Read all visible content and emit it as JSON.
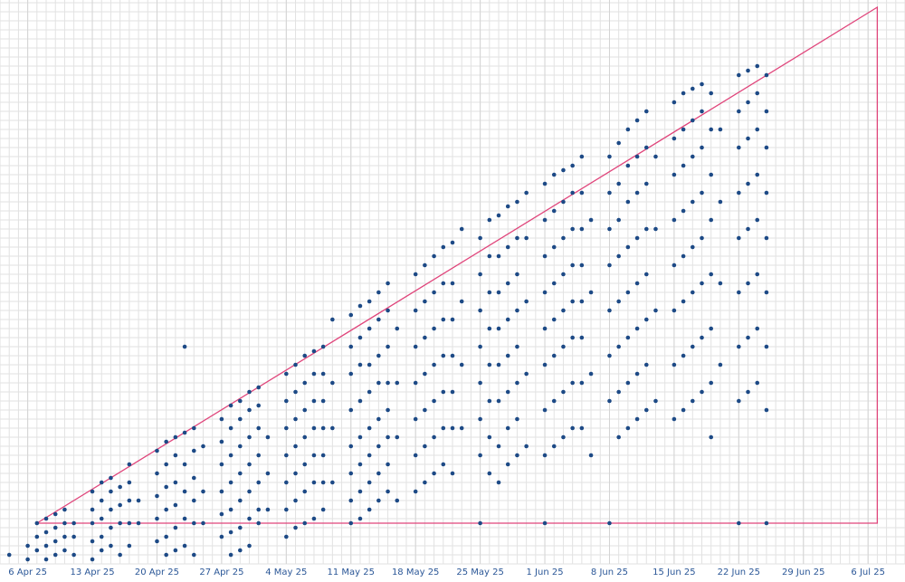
{
  "chart_data": {
    "type": "scatter",
    "color": "#1d4a86",
    "grid": true,
    "xlim": [
      "2025-04-03",
      "2025-07-10"
    ],
    "ylim": [
      0,
      62.3
    ],
    "xticks": [
      {
        "value": "2025-04-06",
        "label": "6 Apr 25"
      },
      {
        "value": "2025-04-13",
        "label": "13 Apr 25"
      },
      {
        "value": "2025-04-20",
        "label": "20 Apr 25"
      },
      {
        "value": "2025-04-27",
        "label": "27 Apr 25"
      },
      {
        "value": "2025-05-04",
        "label": "4 May 25"
      },
      {
        "value": "2025-05-11",
        "label": "11 May 25"
      },
      {
        "value": "2025-05-18",
        "label": "18 May 25"
      },
      {
        "value": "2025-05-25",
        "label": "25 May 25"
      },
      {
        "value": "2025-06-01",
        "label": "1 Jun 25"
      },
      {
        "value": "2025-06-08",
        "label": "8 Jun 25"
      },
      {
        "value": "2025-06-15",
        "label": "15 Jun 25"
      },
      {
        "value": "2025-06-22",
        "label": "22 Jun 25"
      },
      {
        "value": "2025-06-29",
        "label": "29 Jun 25"
      },
      {
        "value": "2025-07-06",
        "label": "6 Jul 25"
      }
    ],
    "triangle": {
      "x": [
        "2025-04-07",
        "2025-07-07",
        "2025-07-07"
      ],
      "values": [
        4.5,
        61.5,
        4.5
      ],
      "color": "#e0457b"
    },
    "x": [
      "2025-04-04",
      "2025-04-06",
      "2025-04-06",
      "2025-04-07",
      "2025-04-07",
      "2025-04-07",
      "2025-04-08",
      "2025-04-08",
      "2025-04-08",
      "2025-04-08",
      "2025-04-09",
      "2025-04-09",
      "2025-04-09",
      "2025-04-09",
      "2025-04-10",
      "2025-04-10",
      "2025-04-10",
      "2025-04-10",
      "2025-04-11",
      "2025-04-11",
      "2025-04-11",
      "2025-04-13",
      "2025-04-13",
      "2025-04-13",
      "2025-04-13",
      "2025-04-13",
      "2025-04-14",
      "2025-04-14",
      "2025-04-14",
      "2025-04-14",
      "2025-04-14",
      "2025-04-15",
      "2025-04-15",
      "2025-04-15",
      "2025-04-15",
      "2025-04-15",
      "2025-04-16",
      "2025-04-16",
      "2025-04-16",
      "2025-04-16",
      "2025-04-17",
      "2025-04-17",
      "2025-04-17",
      "2025-04-17",
      "2025-04-17",
      "2025-04-18",
      "2025-04-18",
      "2025-04-20",
      "2025-04-20",
      "2025-04-20",
      "2025-04-20",
      "2025-04-20",
      "2025-04-21",
      "2025-04-21",
      "2025-04-21",
      "2025-04-21",
      "2025-04-21",
      "2025-04-21",
      "2025-04-22",
      "2025-04-22",
      "2025-04-22",
      "2025-04-22",
      "2025-04-22",
      "2025-04-22",
      "2025-04-23",
      "2025-04-23",
      "2025-04-23",
      "2025-04-23",
      "2025-04-23",
      "2025-04-23",
      "2025-04-24",
      "2025-04-24",
      "2025-04-24",
      "2025-04-24",
      "2025-04-24",
      "2025-04-24",
      "2025-04-25",
      "2025-04-25",
      "2025-04-25",
      "2025-04-27",
      "2025-04-27",
      "2025-04-27",
      "2025-04-27",
      "2025-04-27",
      "2025-04-27",
      "2025-04-28",
      "2025-04-28",
      "2025-04-28",
      "2025-04-28",
      "2025-04-28",
      "2025-04-28",
      "2025-04-28",
      "2025-04-29",
      "2025-04-29",
      "2025-04-29",
      "2025-04-29",
      "2025-04-29",
      "2025-04-29",
      "2025-04-29",
      "2025-04-30",
      "2025-04-30",
      "2025-04-30",
      "2025-04-30",
      "2025-04-30",
      "2025-04-30",
      "2025-04-30",
      "2025-05-01",
      "2025-05-01",
      "2025-05-01",
      "2025-05-01",
      "2025-05-01",
      "2025-05-01",
      "2025-05-01",
      "2025-05-02",
      "2025-05-02",
      "2025-05-02",
      "2025-05-04",
      "2025-05-04",
      "2025-05-04",
      "2025-05-04",
      "2025-05-04",
      "2025-05-04",
      "2025-05-04",
      "2025-05-05",
      "2025-05-05",
      "2025-05-05",
      "2025-05-05",
      "2025-05-05",
      "2025-05-05",
      "2025-05-05",
      "2025-05-06",
      "2025-05-06",
      "2025-05-06",
      "2025-05-06",
      "2025-05-06",
      "2025-05-06",
      "2025-05-06",
      "2025-05-07",
      "2025-05-07",
      "2025-05-07",
      "2025-05-07",
      "2025-05-07",
      "2025-05-07",
      "2025-05-07",
      "2025-05-08",
      "2025-05-08",
      "2025-05-08",
      "2025-05-08",
      "2025-05-08",
      "2025-05-08",
      "2025-05-08",
      "2025-05-09",
      "2025-05-09",
      "2025-05-09",
      "2025-05-09",
      "2025-05-11",
      "2025-05-11",
      "2025-05-11",
      "2025-05-11",
      "2025-05-11",
      "2025-05-11",
      "2025-05-11",
      "2025-05-11",
      "2025-05-12",
      "2025-05-12",
      "2025-05-12",
      "2025-05-12",
      "2025-05-12",
      "2025-05-12",
      "2025-05-12",
      "2025-05-12",
      "2025-05-13",
      "2025-05-13",
      "2025-05-13",
      "2025-05-13",
      "2025-05-13",
      "2025-05-13",
      "2025-05-13",
      "2025-05-13",
      "2025-05-14",
      "2025-05-14",
      "2025-05-14",
      "2025-05-14",
      "2025-05-14",
      "2025-05-14",
      "2025-05-14",
      "2025-05-14",
      "2025-05-15",
      "2025-05-15",
      "2025-05-15",
      "2025-05-15",
      "2025-05-15",
      "2025-05-15",
      "2025-05-15",
      "2025-05-15",
      "2025-05-16",
      "2025-05-16",
      "2025-05-16",
      "2025-05-16",
      "2025-05-18",
      "2025-05-18",
      "2025-05-18",
      "2025-05-18",
      "2025-05-18",
      "2025-05-18",
      "2025-05-18",
      "2025-05-19",
      "2025-05-19",
      "2025-05-19",
      "2025-05-19",
      "2025-05-19",
      "2025-05-19",
      "2025-05-19",
      "2025-05-20",
      "2025-05-20",
      "2025-05-20",
      "2025-05-20",
      "2025-05-20",
      "2025-05-20",
      "2025-05-20",
      "2025-05-21",
      "2025-05-21",
      "2025-05-21",
      "2025-05-21",
      "2025-05-21",
      "2025-05-21",
      "2025-05-21",
      "2025-05-22",
      "2025-05-22",
      "2025-05-22",
      "2025-05-22",
      "2025-05-22",
      "2025-05-22",
      "2025-05-22",
      "2025-05-23",
      "2025-05-23",
      "2025-05-23",
      "2025-05-23",
      "2025-05-25",
      "2025-05-25",
      "2025-05-25",
      "2025-05-25",
      "2025-05-25",
      "2025-05-25",
      "2025-05-25",
      "2025-05-25",
      "2025-05-26",
      "2025-05-26",
      "2025-05-26",
      "2025-05-26",
      "2025-05-26",
      "2025-05-26",
      "2025-05-26",
      "2025-05-26",
      "2025-05-27",
      "2025-05-27",
      "2025-05-27",
      "2025-05-27",
      "2025-05-27",
      "2025-05-27",
      "2025-05-27",
      "2025-05-27",
      "2025-05-28",
      "2025-05-28",
      "2025-05-28",
      "2025-05-28",
      "2025-05-28",
      "2025-05-28",
      "2025-05-28",
      "2025-05-28",
      "2025-05-29",
      "2025-05-29",
      "2025-05-29",
      "2025-05-29",
      "2025-05-29",
      "2025-05-29",
      "2025-05-29",
      "2025-05-29",
      "2025-05-30",
      "2025-05-30",
      "2025-05-30",
      "2025-05-30",
      "2025-05-30",
      "2025-06-01",
      "2025-06-01",
      "2025-06-01",
      "2025-06-01",
      "2025-06-01",
      "2025-06-01",
      "2025-06-01",
      "2025-06-01",
      "2025-06-01",
      "2025-06-02",
      "2025-06-02",
      "2025-06-02",
      "2025-06-02",
      "2025-06-02",
      "2025-06-02",
      "2025-06-02",
      "2025-06-02",
      "2025-06-03",
      "2025-06-03",
      "2025-06-03",
      "2025-06-03",
      "2025-06-03",
      "2025-06-03",
      "2025-06-03",
      "2025-06-03",
      "2025-06-04",
      "2025-06-04",
      "2025-06-04",
      "2025-06-04",
      "2025-06-04",
      "2025-06-04",
      "2025-06-04",
      "2025-06-04",
      "2025-06-05",
      "2025-06-05",
      "2025-06-05",
      "2025-06-05",
      "2025-06-05",
      "2025-06-05",
      "2025-06-05",
      "2025-06-05",
      "2025-06-06",
      "2025-06-06",
      "2025-06-06",
      "2025-06-06",
      "2025-06-08",
      "2025-06-08",
      "2025-06-08",
      "2025-06-08",
      "2025-06-08",
      "2025-06-08",
      "2025-06-08",
      "2025-06-08",
      "2025-06-09",
      "2025-06-09",
      "2025-06-09",
      "2025-06-09",
      "2025-06-09",
      "2025-06-09",
      "2025-06-09",
      "2025-06-09",
      "2025-06-10",
      "2025-06-10",
      "2025-06-10",
      "2025-06-10",
      "2025-06-10",
      "2025-06-10",
      "2025-06-10",
      "2025-06-10",
      "2025-06-11",
      "2025-06-11",
      "2025-06-11",
      "2025-06-11",
      "2025-06-11",
      "2025-06-11",
      "2025-06-11",
      "2025-06-11",
      "2025-06-12",
      "2025-06-12",
      "2025-06-12",
      "2025-06-12",
      "2025-06-12",
      "2025-06-12",
      "2025-06-12",
      "2025-06-12",
      "2025-06-13",
      "2025-06-13",
      "2025-06-13",
      "2025-06-13",
      "2025-06-15",
      "2025-06-15",
      "2025-06-15",
      "2025-06-15",
      "2025-06-15",
      "2025-06-15",
      "2025-06-15",
      "2025-06-15",
      "2025-06-16",
      "2025-06-16",
      "2025-06-16",
      "2025-06-16",
      "2025-06-16",
      "2025-06-16",
      "2025-06-16",
      "2025-06-16",
      "2025-06-17",
      "2025-06-17",
      "2025-06-17",
      "2025-06-17",
      "2025-06-17",
      "2025-06-17",
      "2025-06-17",
      "2025-06-17",
      "2025-06-18",
      "2025-06-18",
      "2025-06-18",
      "2025-06-18",
      "2025-06-18",
      "2025-06-18",
      "2025-06-18",
      "2025-06-18",
      "2025-06-19",
      "2025-06-19",
      "2025-06-19",
      "2025-06-19",
      "2025-06-19",
      "2025-06-19",
      "2025-06-19",
      "2025-06-19",
      "2025-06-20",
      "2025-06-20",
      "2025-06-20",
      "2025-06-20",
      "2025-06-22",
      "2025-06-22",
      "2025-06-22",
      "2025-06-22",
      "2025-06-22",
      "2025-06-22",
      "2025-06-22",
      "2025-06-22",
      "2025-06-22",
      "2025-06-23",
      "2025-06-23",
      "2025-06-23",
      "2025-06-23",
      "2025-06-23",
      "2025-06-23",
      "2025-06-23",
      "2025-06-23",
      "2025-06-24",
      "2025-06-24",
      "2025-06-24",
      "2025-06-24",
      "2025-06-24",
      "2025-06-24",
      "2025-06-24",
      "2025-06-24",
      "2025-06-25",
      "2025-06-25",
      "2025-06-25",
      "2025-06-25",
      "2025-06-25",
      "2025-06-25",
      "2025-06-25",
      "2025-06-25",
      "2025-06-25"
    ],
    "values": [
      1,
      0.5,
      2,
      4.5,
      3,
      1.5,
      5,
      3.5,
      2,
      0.5,
      5.5,
      4,
      2.5,
      1,
      6,
      4.5,
      3,
      1.5,
      4.5,
      3,
      1,
      8,
      6,
      4.5,
      2.5,
      0.5,
      9,
      7,
      5,
      3,
      1.5,
      9.5,
      8,
      6,
      4,
      2,
      8.5,
      6.5,
      4.5,
      1,
      11,
      9,
      7,
      4.5,
      2,
      7,
      4.5,
      12.5,
      10,
      7.5,
      5,
      2.5,
      13.5,
      11,
      8.5,
      6,
      3,
      1,
      14,
      12,
      9,
      6.5,
      4,
      1.5,
      24,
      14.5,
      11,
      8,
      5,
      2,
      15,
      12.5,
      9.5,
      7,
      4.5,
      1,
      13,
      8,
      4.5,
      16,
      13.5,
      11,
      8,
      5.5,
      3,
      17.5,
      15,
      12,
      9,
      6,
      3.5,
      1,
      18,
      16,
      13,
      10,
      7,
      4,
      1.5,
      19,
      17,
      14,
      11,
      8,
      5,
      2,
      19.5,
      17.5,
      15,
      12,
      9,
      6,
      4.5,
      14,
      10,
      6,
      21,
      18,
      15,
      12,
      9,
      6,
      3,
      22,
      19,
      16,
      13,
      10,
      7,
      4,
      23,
      20,
      17,
      14,
      11,
      8,
      4.5,
      23.5,
      21,
      18,
      15,
      12,
      9,
      5,
      24,
      21,
      18,
      15,
      12,
      9,
      6,
      27,
      20,
      15,
      9,
      27.5,
      24,
      21,
      17,
      13,
      10,
      7,
      4.5,
      28.5,
      25,
      22,
      18,
      14,
      11,
      8,
      5,
      29,
      26,
      22,
      19,
      15,
      12,
      9,
      6,
      30,
      27,
      23,
      20,
      16,
      13,
      10,
      7,
      31,
      28,
      24,
      20,
      17,
      14,
      11,
      8,
      26,
      20,
      14,
      7,
      32,
      28,
      24,
      20,
      16,
      12,
      8,
      33,
      29,
      25,
      21,
      17,
      13,
      9,
      34,
      30,
      26,
      22,
      18,
      14,
      10,
      35,
      31,
      27,
      23,
      19,
      15,
      11,
      35.5,
      31,
      27,
      23,
      19,
      15,
      10,
      37,
      29,
      22,
      15,
      36,
      32,
      28,
      24,
      20,
      16,
      12,
      4.5,
      38,
      34,
      30,
      26,
      22,
      18,
      14,
      10,
      38.5,
      34,
      30,
      26,
      22,
      18,
      13,
      9,
      39.5,
      35,
      31,
      27,
      23,
      19,
      15,
      11,
      40,
      36,
      32,
      28,
      24,
      20,
      16,
      12,
      41,
      36,
      29,
      21,
      13,
      42,
      38,
      34,
      30,
      26,
      22,
      17,
      12,
      4.5,
      43,
      39,
      35,
      31,
      27,
      23,
      18,
      13,
      43.5,
      40,
      36,
      32,
      28,
      24,
      19,
      14,
      44,
      41,
      37,
      33,
      29,
      25,
      20,
      15,
      45,
      41,
      37,
      33,
      29,
      25,
      20,
      15,
      38,
      30,
      21,
      12,
      45,
      41,
      37,
      33,
      28,
      23,
      18,
      4.5,
      46.5,
      42,
      38,
      34,
      29,
      24,
      19,
      14,
      48,
      44,
      40,
      35,
      30,
      25,
      20,
      15,
      49,
      45,
      41,
      36,
      31,
      26,
      21,
      16,
      50,
      46,
      42,
      37,
      32,
      27,
      22,
      17,
      45,
      37,
      28,
      18,
      51,
      47,
      43,
      38,
      33,
      28,
      22,
      16,
      52,
      48,
      44,
      39,
      34,
      29,
      23,
      17,
      52.5,
      49,
      45,
      40,
      35,
      30,
      24,
      18,
      53,
      50,
      46,
      41,
      36,
      31,
      25,
      19,
      52,
      48,
      43,
      38,
      32,
      26,
      20,
      14,
      48,
      40,
      31,
      22,
      54,
      50,
      46,
      41,
      36,
      30,
      24,
      18,
      4.5,
      54.5,
      51,
      47,
      42,
      37,
      31,
      25,
      19,
      55,
      52,
      48,
      43,
      38,
      32,
      26,
      20,
      54,
      50,
      46,
      41,
      36,
      30,
      24,
      17,
      4.5
    ]
  }
}
